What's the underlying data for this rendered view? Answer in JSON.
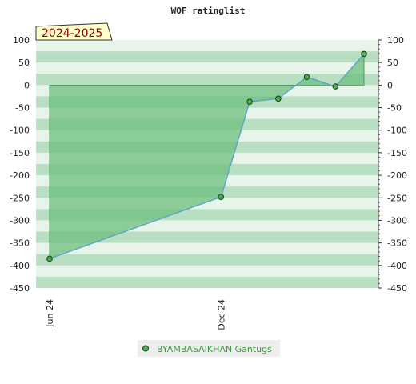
{
  "chart_data": {
    "type": "area",
    "title": "WOF ratinglist",
    "season_label": "2024-2025",
    "ylim": [
      -450,
      100
    ],
    "y_ticks": [
      100,
      50,
      0,
      -50,
      -100,
      -150,
      -200,
      -250,
      -300,
      -350,
      -400,
      -450
    ],
    "x_ticks": [
      {
        "label": "Jun 24",
        "x": 0
      },
      {
        "label": "Dec 24",
        "x": 6
      }
    ],
    "xlim": [
      0,
      11.5
    ],
    "baseline": 0,
    "series": [
      {
        "name": "BYAMBASAIKHAN Gantugs",
        "x": [
          0,
          6,
          7,
          8,
          9,
          10,
          11
        ],
        "y": [
          -385,
          -248,
          -37,
          -30,
          18,
          -3,
          69
        ]
      }
    ],
    "grid": true,
    "legend_position": "bottom",
    "colors": {
      "fill": "#6cbf7e",
      "line": "#5aa0d0",
      "marker": "#4caf50",
      "band_dark": "#b9dfc2",
      "band_light": "#e6f4e9"
    }
  }
}
